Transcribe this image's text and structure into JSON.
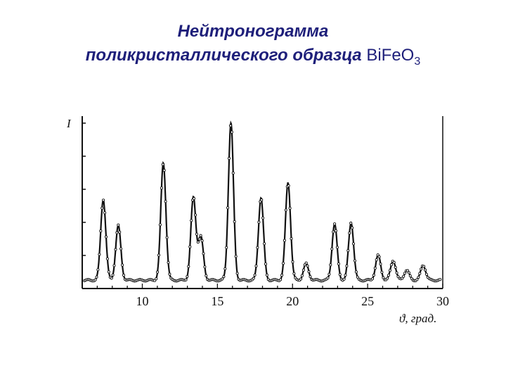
{
  "title": {
    "line1": "Нейтронограмма",
    "line2_text": "поликристаллического образца",
    "formula_main": "BiFeO",
    "formula_sub": "3"
  },
  "chart_data": {
    "type": "line",
    "ylabel": "I",
    "xlabel": "ϑ, град.",
    "xlim": [
      6,
      30
    ],
    "ylim": [
      0,
      100
    ],
    "xticks": [
      10,
      15,
      20,
      25,
      30
    ],
    "grid": false,
    "series": [
      {
        "baseline": 5,
        "peaks": [
          {
            "x": 7.4,
            "height": 49
          },
          {
            "x": 8.4,
            "height": 33
          },
          {
            "x": 11.4,
            "height": 71
          },
          {
            "x": 13.4,
            "height": 50
          },
          {
            "x": 13.9,
            "height": 26
          },
          {
            "x": 15.9,
            "height": 95
          },
          {
            "x": 17.9,
            "height": 50
          },
          {
            "x": 19.7,
            "height": 59
          },
          {
            "x": 20.9,
            "height": 10
          },
          {
            "x": 22.8,
            "height": 34
          },
          {
            "x": 23.9,
            "height": 35
          },
          {
            "x": 25.7,
            "height": 15
          },
          {
            "x": 26.7,
            "height": 12
          },
          {
            "x": 27.6,
            "height": 6
          },
          {
            "x": 28.7,
            "height": 9
          }
        ]
      }
    ],
    "colors": {
      "line": "#111111",
      "title": "#1e1f7a"
    }
  }
}
